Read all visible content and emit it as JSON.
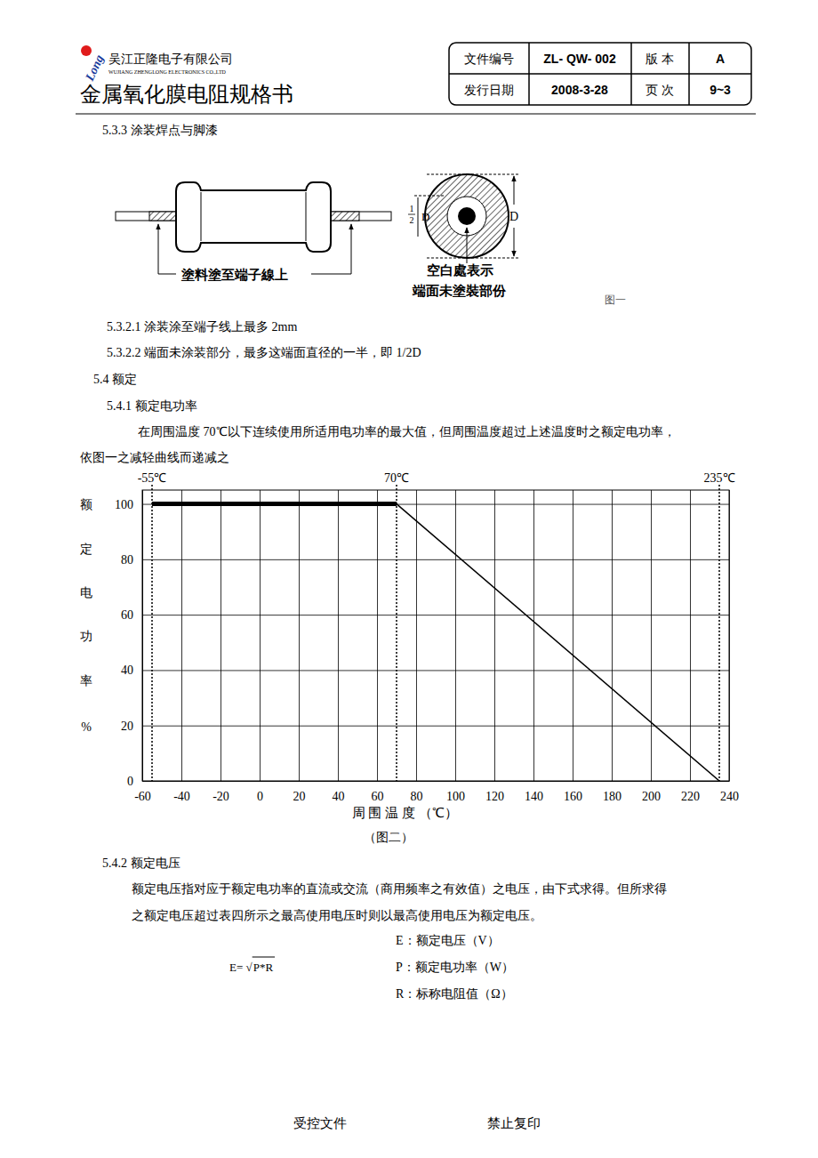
{
  "header": {
    "company": "吴江正隆电子有限公司",
    "company_en": "WUJIANG ZHENGLONG ELECTRONICS CO.,LTD",
    "logo": "Long",
    "title": "金属氧化膜电阻规格书",
    "table": [
      [
        "文件编号",
        "ZL- QW- 002",
        "版  本",
        "A"
      ],
      [
        "发行日期",
        "2008-3-28",
        "页  次",
        "9~3"
      ]
    ]
  },
  "section_title": "5.3.3 涂装焊点与脚漆",
  "figure1": {
    "left_label": "塗料塗至端子線上",
    "right_label": [
      "空白處表示",
      "端面未塗裝部份"
    ],
    "d": "D",
    "half_num": "1",
    "half_den": "2",
    "half_d": "D",
    "caption": "图一"
  },
  "text_top": [
    "5.3.2.1 涂装涂至端子线上最多 2mm",
    "5.3.2.2 端面未涂装部分，最多这端面直径的一半，即 1/2D",
    "5.4 额定",
    "5.4.1 额定电功率",
    "在周围温度 70℃以下连续使用所适用电功率的最大值，但周围温度超过上述温度时之额定电功率，",
    "依图一之减轻曲线而递减之"
  ],
  "chart_data": {
    "type": "line",
    "x": [
      -55,
      70,
      235
    ],
    "values": [
      100,
      100,
      0
    ],
    "color": "#000000",
    "xlim": [
      -60,
      240
    ],
    "xticks": [
      -60,
      -40,
      -20,
      0,
      20,
      40,
      60,
      80,
      100,
      120,
      140,
      160,
      180,
      200,
      220,
      240
    ],
    "ylim": [
      0,
      105
    ],
    "yticks": [
      0,
      20,
      40,
      60,
      80,
      100
    ],
    "grid": true,
    "xlabel": "周 围 温 度 （℃）",
    "ylabel": "额定电功率%",
    "caption": "（图二）",
    "annotations": [
      {
        "x": -55,
        "text": "-55℃"
      },
      {
        "x": 70,
        "text": "70℃"
      },
      {
        "x": 235,
        "text": "235℃"
      }
    ]
  },
  "text_bottom": [
    "5.4.2 额定电压",
    "额定电压指对应于额定电功率的直流或交流（商用频率之有效值）之电压，由下式求得。但所求得",
    "之额定电压超过表四所示之最高使用电压时则以最高使用电压为额定电压。"
  ],
  "formula": {
    "lhs": "E= √",
    "radicand": "P*R",
    "definitions": [
      "E：额定电压（V）",
      "P：额定电功率（W）",
      "R：标称电阻值（Ω）"
    ]
  },
  "footer": [
    "受控文件",
    "禁止复印"
  ]
}
